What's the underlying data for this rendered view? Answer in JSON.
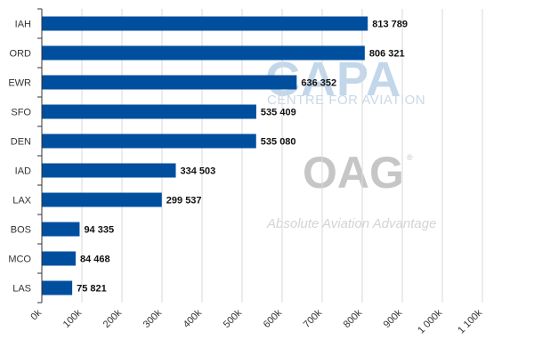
{
  "watermarks": {
    "capa": "CAPA",
    "capa_sub": "CENTRE FOR AVIATION",
    "oag": "OAG",
    "oag_registered": "®",
    "oag_tagline": "Absolute Aviation Advantage"
  },
  "colors": {
    "bar": "#004f9f",
    "grid": "#d9d9d9",
    "axis": "#333333",
    "label_text": "#111111"
  },
  "chart_data": {
    "type": "bar",
    "orientation": "horizontal",
    "title": "",
    "xlabel": "",
    "ylabel": "",
    "categories": [
      "IAH",
      "ORD",
      "EWR",
      "SFO",
      "DEN",
      "IAD",
      "LAX",
      "BOS",
      "MCO",
      "LAS"
    ],
    "values": [
      813789,
      806321,
      636352,
      535409,
      535080,
      334503,
      299537,
      94335,
      84468,
      75821
    ],
    "value_labels": [
      "813 789",
      "806 321",
      "636 352",
      "535 409",
      "535 080",
      "334 503",
      "299 537",
      "94 335",
      "84 468",
      "75 821"
    ],
    "xlim": [
      0,
      1100000
    ],
    "x_ticks": [
      0,
      100000,
      200000,
      300000,
      400000,
      500000,
      600000,
      700000,
      800000,
      900000,
      1000000,
      1100000
    ],
    "x_tick_labels": [
      "0k",
      "100k",
      "200k",
      "300k",
      "400k",
      "500k",
      "600k",
      "700k",
      "800k",
      "900k",
      "1 000k",
      "1 100k"
    ],
    "grid": "vertical",
    "legend": "none"
  }
}
